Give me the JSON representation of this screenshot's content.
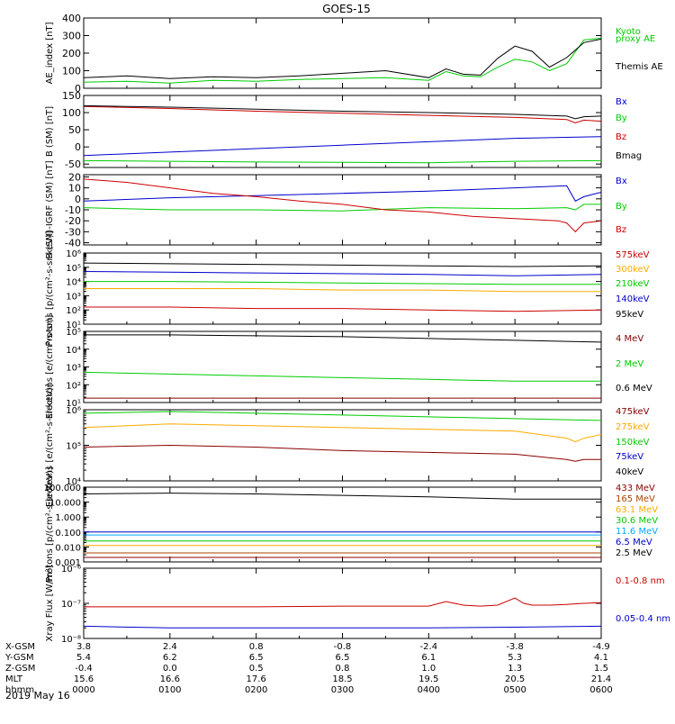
{
  "title": "GOES-15",
  "date": "2019 May 16",
  "colors": {
    "black": "#000000",
    "red": "#cc0000",
    "green": "#00cc00",
    "blue": "#0000cc",
    "orange": "#ffaa00",
    "cyan": "#00aaff",
    "darkred": "#880000",
    "brown": "#aa4400"
  },
  "ephemeris": {
    "row_labels": [
      "X-GSM",
      "Y-GSM",
      "Z-GSM",
      "MLT",
      "hhmm"
    ],
    "columns": [
      {
        "values": [
          "3.8",
          "5.4",
          "-0.4",
          "15.6",
          "0000"
        ]
      },
      {
        "values": [
          "2.4",
          "6.2",
          "0.0",
          "16.6",
          "0100"
        ]
      },
      {
        "values": [
          "0.8",
          "6.5",
          "0.5",
          "17.6",
          "0200"
        ]
      },
      {
        "values": [
          "-0.8",
          "6.5",
          "0.8",
          "18.5",
          "0300"
        ]
      },
      {
        "values": [
          "-2.4",
          "6.1",
          "1.0",
          "19.5",
          "0400"
        ]
      },
      {
        "values": [
          "-3.8",
          "5.3",
          "1.3",
          "20.5",
          "0500"
        ]
      },
      {
        "values": [
          "-4.9",
          "4.1",
          "1.5",
          "21.4",
          "0600"
        ]
      }
    ]
  },
  "chart_data": [
    {
      "type": "line",
      "ylabel": "AE_index [nT]",
      "x_range_hours": [
        0,
        6
      ],
      "ylim": [
        0,
        400
      ],
      "scale": "linear",
      "ticks": [
        0,
        100,
        200,
        300,
        400
      ],
      "series": [
        {
          "name": "Kyoto",
          "color": "green",
          "x": [
            0,
            0.5,
            1,
            1.5,
            2,
            2.5,
            3,
            3.5,
            4,
            4.2,
            4.4,
            4.6,
            4.8,
            5,
            5.2,
            5.4,
            5.6,
            5.8,
            6
          ],
          "values": [
            35,
            40,
            30,
            45,
            40,
            50,
            55,
            60,
            45,
            95,
            70,
            65,
            120,
            165,
            150,
            100,
            140,
            275,
            285
          ]
        },
        {
          "name": "proxy AE",
          "color": "green",
          "x": [],
          "values": []
        },
        {
          "name": "Themis AE",
          "color": "black",
          "x": [
            0,
            0.5,
            1,
            1.5,
            2,
            2.5,
            3,
            3.5,
            4,
            4.2,
            4.4,
            4.6,
            4.8,
            5,
            5.2,
            5.4,
            5.6,
            5.8,
            6
          ],
          "values": [
            60,
            70,
            55,
            65,
            60,
            70,
            85,
            100,
            60,
            110,
            80,
            75,
            170,
            240,
            210,
            120,
            175,
            260,
            280
          ]
        }
      ]
    },
    {
      "type": "line",
      "ylabel": "B (SM) [nT]",
      "x_range_hours": [
        0,
        6
      ],
      "ylim": [
        -60,
        150
      ],
      "scale": "linear",
      "ticks": [
        -50,
        0,
        50,
        100,
        150
      ],
      "series": [
        {
          "name": "Bx",
          "color": "blue",
          "x": [
            0,
            1,
            2,
            3,
            4,
            5,
            6
          ],
          "values": [
            -25,
            -15,
            -5,
            5,
            15,
            25,
            30
          ]
        },
        {
          "name": "By",
          "color": "green",
          "x": [
            0,
            1,
            2,
            3,
            4,
            5,
            6
          ],
          "values": [
            -40,
            -42,
            -44,
            -45,
            -46,
            -42,
            -40
          ]
        },
        {
          "name": "Bz",
          "color": "red",
          "x": [
            0,
            1,
            2,
            3,
            4,
            5,
            5.6,
            5.7,
            5.8,
            6
          ],
          "values": [
            118,
            112,
            104,
            98,
            92,
            86,
            80,
            70,
            78,
            75
          ]
        },
        {
          "name": "Bmag",
          "color": "black",
          "x": [
            0,
            1,
            2,
            3,
            4,
            5,
            5.6,
            5.7,
            5.8,
            6
          ],
          "values": [
            120,
            116,
            110,
            104,
            100,
            95,
            90,
            82,
            88,
            90
          ]
        }
      ]
    },
    {
      "type": "line",
      "ylabel": "B (SM)-IGRF (SM) [nT]",
      "x_range_hours": [
        0,
        6
      ],
      "ylim": [
        -42,
        22
      ],
      "scale": "linear",
      "ticks": [
        -40,
        -30,
        -20,
        -10,
        0,
        10,
        20
      ],
      "series": [
        {
          "name": "Bx",
          "color": "blue",
          "x": [
            0,
            1,
            2,
            3,
            4,
            5,
            5.6,
            5.7,
            5.8,
            6
          ],
          "values": [
            -2,
            1,
            3,
            5,
            7,
            10,
            12,
            -2,
            2,
            6
          ]
        },
        {
          "name": "By",
          "color": "green",
          "x": [
            0,
            1,
            2,
            3,
            4,
            5,
            5.6,
            5.7,
            5.8,
            6
          ],
          "values": [
            -8,
            -10,
            -10,
            -11,
            -8,
            -9,
            -8,
            -10,
            -5,
            -5
          ]
        },
        {
          "name": "Bz",
          "color": "red",
          "x": [
            0,
            0.5,
            1,
            1.5,
            2,
            2.5,
            3,
            3.5,
            4,
            4.5,
            5,
            5.5,
            5.6,
            5.7,
            5.8,
            6
          ],
          "values": [
            18,
            15,
            10,
            5,
            2,
            -2,
            -5,
            -10,
            -12,
            -16,
            -18,
            -20,
            -22,
            -30,
            -22,
            -20
          ]
        }
      ]
    },
    {
      "type": "line",
      "ylabel": "Protons [p/(cm²-s-sr-keV)]",
      "x_range_hours": [
        0,
        6
      ],
      "ylim_log10": [
        1,
        6
      ],
      "scale": "log",
      "tick_labels": [
        "10¹",
        "10²",
        "10³",
        "10⁴",
        "10⁵",
        "10⁶"
      ],
      "tick_exponents": [
        1,
        2,
        3,
        4,
        5,
        6
      ],
      "series": [
        {
          "name": "575keV",
          "color": "red",
          "x": [
            0,
            1,
            2,
            3,
            4,
            5,
            6
          ],
          "log_values": [
            2.2,
            2.2,
            2.1,
            2.1,
            2.0,
            1.9,
            2.0
          ]
        },
        {
          "name": "300keV",
          "color": "orange",
          "x": [
            0,
            1,
            2,
            3,
            4,
            5,
            6
          ],
          "log_values": [
            3.5,
            3.5,
            3.5,
            3.4,
            3.4,
            3.3,
            3.3
          ]
        },
        {
          "name": "210keV",
          "color": "green",
          "x": [
            0,
            1,
            2,
            3,
            4,
            5,
            6
          ],
          "log_values": [
            4.0,
            4.0,
            3.95,
            3.9,
            3.85,
            3.8,
            3.8
          ]
        },
        {
          "name": "140keV",
          "color": "blue",
          "x": [
            0,
            1,
            2,
            3,
            4,
            5,
            6
          ],
          "log_values": [
            4.7,
            4.65,
            4.6,
            4.55,
            4.5,
            4.4,
            4.5
          ]
        },
        {
          "name": "95keV",
          "color": "black",
          "x": [
            0,
            1,
            2,
            3,
            4,
            5,
            6
          ],
          "log_values": [
            5.3,
            5.25,
            5.2,
            5.15,
            5.1,
            5.05,
            5.1
          ]
        }
      ]
    },
    {
      "type": "line",
      "ylabel": "Electrons [e/(cm²-s-sr)]",
      "x_range_hours": [
        0,
        6
      ],
      "ylim_log10": [
        1,
        5
      ],
      "scale": "log",
      "tick_labels": [
        "10¹",
        "10²",
        "10³",
        "10⁴",
        "10⁵"
      ],
      "tick_exponents": [
        1,
        2,
        3,
        4,
        5
      ],
      "series": [
        {
          "name": "4 MeV",
          "color": "darkred",
          "x": [
            0,
            1,
            2,
            3,
            4,
            5,
            6
          ],
          "log_values": [
            1.25,
            1.25,
            1.25,
            1.25,
            1.25,
            1.25,
            1.25
          ]
        },
        {
          "name": "2 MeV",
          "color": "green",
          "x": [
            0,
            1,
            2,
            3,
            4,
            5,
            6
          ],
          "log_values": [
            2.7,
            2.6,
            2.5,
            2.4,
            2.3,
            2.2,
            2.2
          ]
        },
        {
          "name": "0.6 MeV",
          "color": "black",
          "x": [
            0,
            1,
            2,
            3,
            4,
            5,
            6
          ],
          "log_values": [
            4.8,
            4.8,
            4.75,
            4.7,
            4.6,
            4.5,
            4.4
          ]
        }
      ]
    },
    {
      "type": "line",
      "ylabel": "Electrons [e/(cm²-s-sr-keV)]",
      "x_range_hours": [
        0,
        6
      ],
      "ylim_log10": [
        4,
        6
      ],
      "scale": "log",
      "tick_labels": [
        "10⁴",
        "10⁵",
        "10⁶"
      ],
      "tick_exponents": [
        4,
        5,
        6
      ],
      "series": [
        {
          "name": "475keV",
          "color": "darkred",
          "x": [
            0,
            1,
            2,
            3,
            4,
            5,
            5.6,
            5.7,
            5.8,
            6
          ],
          "log_values": [
            4.95,
            5.0,
            4.95,
            4.85,
            4.8,
            4.75,
            4.6,
            4.55,
            4.6,
            4.6
          ]
        },
        {
          "name": "275keV",
          "color": "orange",
          "x": [
            0,
            1,
            2,
            3,
            4,
            5,
            5.6,
            5.7,
            5.8,
            6
          ],
          "log_values": [
            5.5,
            5.6,
            5.55,
            5.5,
            5.45,
            5.4,
            5.2,
            5.1,
            5.2,
            5.3
          ]
        },
        {
          "name": "150keV",
          "color": "green",
          "x": [
            0,
            1,
            2,
            3,
            4,
            5,
            6
          ],
          "log_values": [
            5.9,
            5.95,
            5.9,
            5.85,
            5.8,
            5.75,
            5.7
          ]
        },
        {
          "name": "75keV",
          "color": "blue",
          "x": [],
          "log_values": []
        },
        {
          "name": "40keV",
          "color": "black",
          "x": [],
          "log_values": []
        }
      ]
    },
    {
      "type": "line",
      "ylabel": "Protons [p/(cm²-s-sr-keV)]",
      "x_range_hours": [
        0,
        6
      ],
      "ylim_log10": [
        -3,
        2
      ],
      "scale": "log",
      "tick_labels": [
        "100.000",
        "10.000",
        "1.000",
        "0.100",
        "0.010",
        "0.001"
      ],
      "tick_exponents": [
        2,
        1,
        0,
        -1,
        -2,
        -3
      ],
      "series": [
        {
          "name": "433 MeV",
          "color": "darkred",
          "x": [
            0,
            6
          ],
          "log_values": [
            -2.7,
            -2.7
          ]
        },
        {
          "name": "165 MeV",
          "color": "brown",
          "x": [
            0,
            6
          ],
          "log_values": [
            -2.4,
            -2.4
          ]
        },
        {
          "name": "63.1 MeV",
          "color": "orange",
          "x": [
            0,
            6
          ],
          "log_values": [
            -1.9,
            -1.9
          ]
        },
        {
          "name": "30.6 MeV",
          "color": "green",
          "x": [
            0,
            6
          ],
          "log_values": [
            -1.6,
            -1.6
          ]
        },
        {
          "name": "11.6 MeV",
          "color": "cyan",
          "x": [
            0,
            6
          ],
          "log_values": [
            -1.2,
            -1.2
          ]
        },
        {
          "name": "6.5 MeV",
          "color": "blue",
          "x": [
            0,
            6
          ],
          "log_values": [
            -1.0,
            -1.0
          ]
        },
        {
          "name": "2.5 MeV",
          "color": "black",
          "x": [
            0,
            1,
            2,
            3,
            4,
            5,
            6
          ],
          "log_values": [
            1.55,
            1.6,
            1.55,
            1.45,
            1.35,
            1.2,
            1.2
          ]
        }
      ]
    },
    {
      "type": "line",
      "ylabel": "Xray Flux [W/m²]",
      "x_range_hours": [
        0,
        6
      ],
      "ylim_log10": [
        -8,
        -6
      ],
      "scale": "log",
      "tick_labels": [
        "10⁻⁸",
        "10⁻⁷",
        "10⁻⁶"
      ],
      "tick_exponents": [
        -8,
        -7,
        -6
      ],
      "series": [
        {
          "name": "0.1-0.8 nm",
          "color": "red",
          "x": [
            0,
            1,
            2,
            3,
            4,
            4.2,
            4.4,
            4.6,
            4.8,
            5,
            5.1,
            5.2,
            5.4,
            5.6,
            5.8,
            6
          ],
          "log_values": [
            -7.1,
            -7.1,
            -7.1,
            -7.08,
            -7.08,
            -6.95,
            -7.05,
            -7.08,
            -7.05,
            -6.85,
            -7.0,
            -7.05,
            -7.05,
            -7.03,
            -7.0,
            -6.98
          ]
        },
        {
          "name": "0.05-0.4 nm",
          "color": "blue",
          "x": [
            0,
            1,
            2,
            3,
            4,
            5,
            6
          ],
          "log_values": [
            -7.65,
            -7.7,
            -7.7,
            -7.7,
            -7.7,
            -7.68,
            -7.65
          ]
        }
      ]
    }
  ]
}
